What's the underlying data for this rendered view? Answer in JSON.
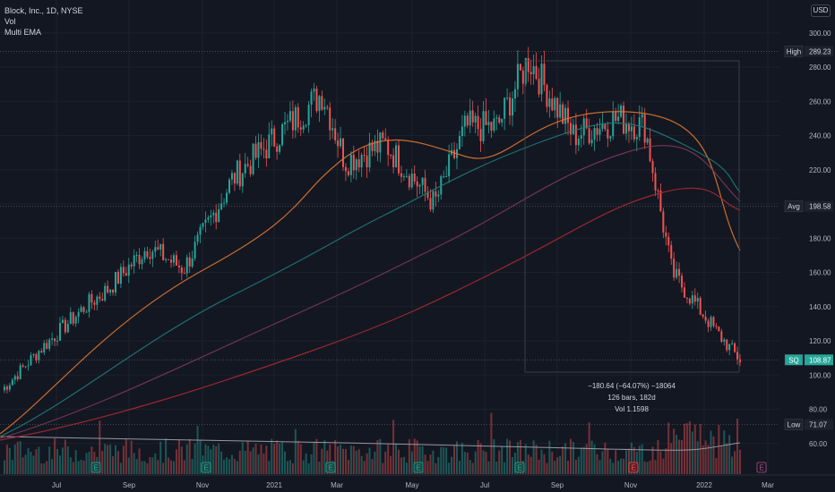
{
  "legend": {
    "title": "Block, Inc., 1D, NYSE",
    "line2": "Vol",
    "line3": "Multi EMA"
  },
  "currency": "USD",
  "price_axis": {
    "ticks": [
      "300.00",
      "280.00",
      "260.00",
      "240.00",
      "220.00",
      "200.00",
      "180.00",
      "160.00",
      "140.00",
      "120.00",
      "100.00",
      "80.00",
      "60.00"
    ],
    "tick_values": [
      300,
      280,
      260,
      240,
      220,
      200,
      180,
      160,
      140,
      120,
      100,
      80,
      60
    ]
  },
  "time_axis": {
    "labels": [
      "Jul",
      "Sep",
      "Nov",
      "2021",
      "Mar",
      "May",
      "Jul",
      "Sep",
      "Nov",
      "2022",
      "Mar"
    ]
  },
  "tags": {
    "high": {
      "label": "High",
      "value": "289.23",
      "price": 289.23
    },
    "avg": {
      "label": "Avg",
      "value": "198.58",
      "price": 198.58
    },
    "last": {
      "label": "SQ",
      "value": "108.87",
      "price": 108.87
    },
    "low": {
      "label": "Low",
      "value": "71.07",
      "price": 71.07
    }
  },
  "measure": {
    "line1": "−180.64 (−64.07%) −18064",
    "line2": "126 bars, 182d",
    "line3": "Vol 1.1598"
  },
  "event_markers": [
    "E",
    "E",
    "E",
    "E",
    "E",
    "E",
    "E",
    "E"
  ],
  "colors": {
    "up": "#26a69a",
    "down": "#ef5350",
    "ema1": "#e0752c",
    "ema2": "#1f7a77",
    "ema3": "#7b3957",
    "ema4": "#a8292f",
    "volume_ma": "#9598a1",
    "last_tag": "#26a69a",
    "tag_bg": "#1e222d"
  },
  "chart_data": {
    "type": "candlestick",
    "title": "Block, Inc., 1D, NYSE",
    "ylim": [
      55,
      305
    ],
    "x": [
      "2020-06",
      "2020-07",
      "2020-08",
      "2020-09",
      "2020-10",
      "2020-11",
      "2020-12",
      "2021-01",
      "2021-02",
      "2021-03",
      "2021-04",
      "2021-05",
      "2021-06",
      "2021-07",
      "2021-08",
      "2021-09",
      "2021-10",
      "2021-11",
      "2021-12",
      "2022-01",
      "2022-02"
    ],
    "close": [
      90,
      115,
      140,
      150,
      175,
      162,
      215,
      235,
      265,
      225,
      235,
      200,
      245,
      245,
      285,
      240,
      250,
      245,
      160,
      125,
      108.87
    ],
    "high": 289.23,
    "low": 71.07,
    "avg": 198.58,
    "last": 108.87
  }
}
